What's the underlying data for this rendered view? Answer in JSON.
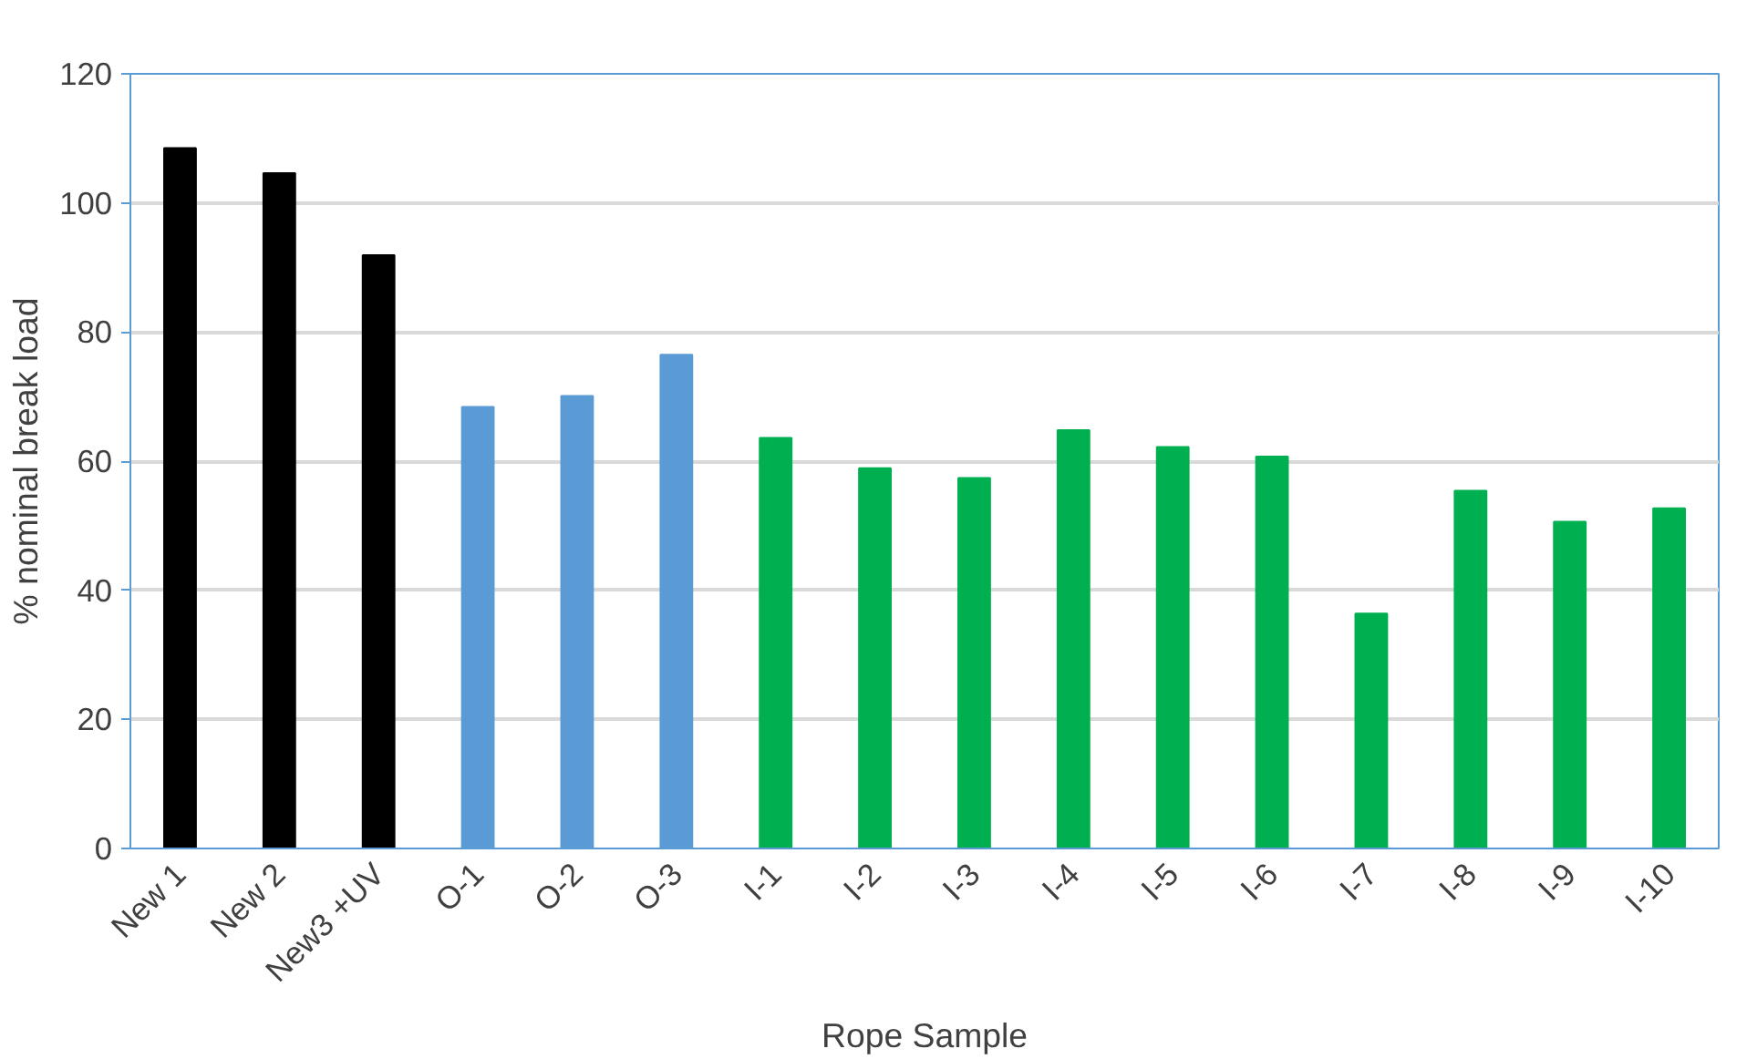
{
  "chart_data": {
    "type": "bar",
    "xlabel": "Rope Sample",
    "ylabel": "% nominal break load",
    "categories": [
      "New 1",
      "New 2",
      "New3 +UV",
      "O-1",
      "O-2",
      "O-3",
      "I-1",
      "I-2",
      "I-3",
      "I-4",
      "I-5",
      "I-6",
      "I-7",
      "I-8",
      "I-9",
      "I-10"
    ],
    "values": [
      108.5,
      104.6,
      91.9,
      68.4,
      70.1,
      76.5,
      63.6,
      58.9,
      57.4,
      64.8,
      62.2,
      60.7,
      36.4,
      55.4,
      50.6,
      52.7
    ],
    "colors": [
      "#000000",
      "#000000",
      "#000000",
      "#5b9bd5",
      "#5b9bd5",
      "#5b9bd5",
      "#00b050",
      "#00b050",
      "#00b050",
      "#00b050",
      "#00b050",
      "#00b050",
      "#00b050",
      "#00b050",
      "#00b050",
      "#00b050"
    ],
    "ylim": [
      0,
      120
    ],
    "yticks": [
      0,
      20,
      40,
      60,
      80,
      100,
      120
    ],
    "grid": "y"
  }
}
